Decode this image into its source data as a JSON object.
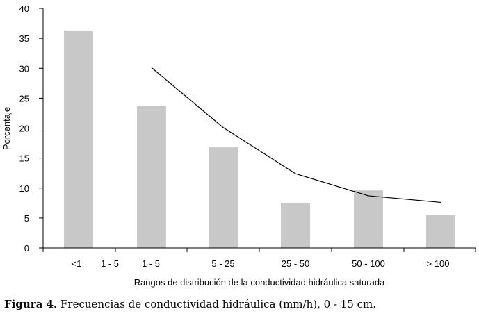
{
  "chart_data": {
    "type": "bar",
    "categories": [
      "<1",
      "1 - 5",
      "5 - 25",
      "25 - 50",
      "50 - 100",
      "> 100"
    ],
    "values": [
      36.3,
      23.7,
      16.8,
      7.5,
      9.6,
      5.5
    ],
    "series": [
      {
        "type": "bar",
        "values": [
          36.3,
          23.7,
          16.8,
          7.5,
          9.6,
          5.5
        ]
      },
      {
        "type": "line",
        "values": [
          null,
          30.1,
          20.1,
          12.4,
          8.7,
          7.6
        ]
      }
    ],
    "extra_tick_labels": [
      {
        "after_category": "<1",
        "label": "1 - 5"
      }
    ],
    "xlabel": "Rangos de distribución de la conductividad hidráulica saturada",
    "ylabel": "Porcentaje",
    "ylim": [
      0,
      40
    ],
    "yticks": [
      0,
      5,
      10,
      15,
      20,
      25,
      30,
      35,
      40
    ],
    "grid": false,
    "bar_color": "#c8c8c8",
    "line_color": "#000000"
  },
  "caption": {
    "label": "Figura 4.",
    "text": " Frecuencias de conductividad hidráulica (mm/h), 0 - 15 cm."
  }
}
